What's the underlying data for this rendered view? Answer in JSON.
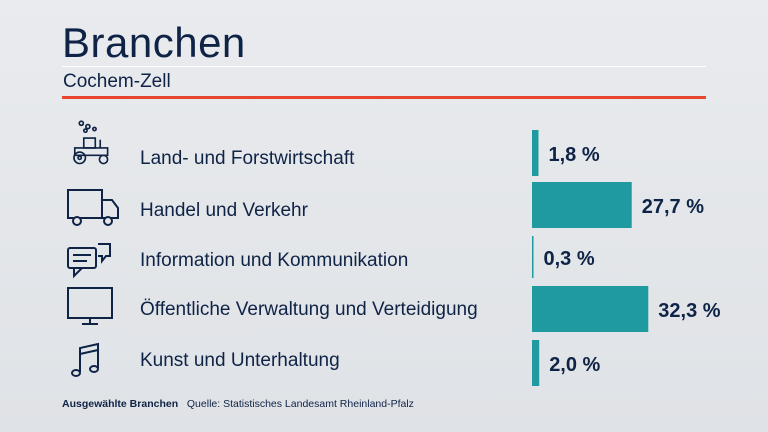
{
  "header": {
    "title": "Branchen",
    "subtitle": "Cochem-Zell"
  },
  "colors": {
    "bar": "#1e9aa0",
    "text": "#0f2346",
    "accent": "#e8452f"
  },
  "chart_data": {
    "type": "bar",
    "orientation": "horizontal",
    "categories": [
      "Land- und Forstwirtschaft",
      "Handel und Verkehr",
      "Information und Kommunikation",
      "Öffentliche Verwaltung und Verteidigung",
      "Kunst und Unterhaltung"
    ],
    "values": [
      1.8,
      27.7,
      0.3,
      32.3,
      2.0
    ],
    "value_labels": [
      "1,8 %",
      "27,7 %",
      "0,3 %",
      "32,3 %",
      "2,0 %"
    ],
    "icons": [
      "tractor-icon",
      "truck-icon",
      "chat-bubbles-icon",
      "monitor-icon",
      "music-note-icon"
    ]
  },
  "footer": {
    "label": "Ausgewählte Branchen",
    "source": "Quelle: Statistisches Landesamt Rheinland-Pfalz"
  }
}
